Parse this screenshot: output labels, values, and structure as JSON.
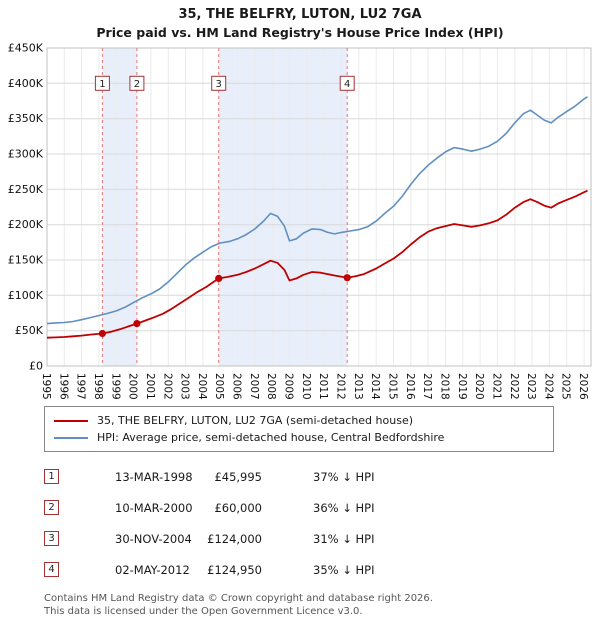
{
  "chart_data": {
    "type": "line",
    "title": "35, THE BELFRY, LUTON, LU2 7GA",
    "subtitle": "Price paid vs. HM Land Registry's House Price Index (HPI)",
    "xlabel": "",
    "ylabel": "",
    "grid": true,
    "x_range": [
      1995,
      2026.4
    ],
    "y_range": [
      0,
      450000
    ],
    "y_ticks": [
      0,
      50000,
      100000,
      150000,
      200000,
      250000,
      300000,
      350000,
      400000,
      450000
    ],
    "y_tick_labels": [
      "£0",
      "£50K",
      "£100K",
      "£150K",
      "£200K",
      "£250K",
      "£300K",
      "£350K",
      "£400K",
      "£450K"
    ],
    "x_ticks": [
      1995,
      1996,
      1997,
      1998,
      1999,
      2000,
      2001,
      2002,
      2003,
      2004,
      2005,
      2006,
      2007,
      2008,
      2009,
      2010,
      2011,
      2012,
      2013,
      2014,
      2015,
      2016,
      2017,
      2018,
      2019,
      2020,
      2021,
      2022,
      2023,
      2024,
      2025,
      2026
    ],
    "colors": {
      "property": "#c00000",
      "hpi": "#6090c0",
      "band": "#e9effa",
      "event_line": "#e07878",
      "grid_h": "#d9d9d9",
      "grid_v": "#ebebeb",
      "border": "#c0c0c0"
    },
    "legend": [
      {
        "label": "35, THE BELFRY, LUTON, LU2 7GA (semi-detached house)",
        "color": "#c00000",
        "thickness": 2.5
      },
      {
        "label": "HPI: Average price, semi-detached house, Central Bedfordshire",
        "color": "#6090c0",
        "thickness": 2
      }
    ],
    "bands": [
      [
        1998.2,
        2000.19
      ],
      [
        2004.91,
        2012.33
      ]
    ],
    "events": [
      {
        "label": "1",
        "x": 1998.2,
        "y": 45995
      },
      {
        "label": "2",
        "x": 2000.19,
        "y": 60000
      },
      {
        "label": "3",
        "x": 2004.91,
        "y": 124000
      },
      {
        "label": "4",
        "x": 2012.33,
        "y": 124950
      }
    ],
    "series": [
      {
        "name": "35, THE BELFRY, LUTON, LU2 7GA (semi-detached house)",
        "color_key": "property",
        "points": [
          [
            1995,
            40000
          ],
          [
            1995.5,
            40500
          ],
          [
            1996,
            41000
          ],
          [
            1996.5,
            42000
          ],
          [
            1997,
            43000
          ],
          [
            1997.5,
            44500
          ],
          [
            1998.2,
            45995
          ],
          [
            1998.7,
            48500
          ],
          [
            1999.2,
            52000
          ],
          [
            1999.7,
            56000
          ],
          [
            2000.19,
            60000
          ],
          [
            2000.7,
            64500
          ],
          [
            2001.2,
            69000
          ],
          [
            2001.7,
            74000
          ],
          [
            2002.2,
            81000
          ],
          [
            2002.7,
            89000
          ],
          [
            2003.2,
            97000
          ],
          [
            2003.7,
            105000
          ],
          [
            2004.2,
            112000
          ],
          [
            2004.91,
            124000
          ],
          [
            2005.4,
            126000
          ],
          [
            2006,
            129000
          ],
          [
            2006.5,
            133000
          ],
          [
            2007,
            138000
          ],
          [
            2007.5,
            144000
          ],
          [
            2007.9,
            149000
          ],
          [
            2008.3,
            146000
          ],
          [
            2008.7,
            136000
          ],
          [
            2009,
            121000
          ],
          [
            2009.4,
            124000
          ],
          [
            2009.8,
            129000
          ],
          [
            2010.3,
            133000
          ],
          [
            2010.8,
            132000
          ],
          [
            2011.2,
            130000
          ],
          [
            2011.6,
            128000
          ],
          [
            2012.33,
            124950
          ],
          [
            2012.8,
            127000
          ],
          [
            2013.3,
            130000
          ],
          [
            2014,
            138000
          ],
          [
            2014.5,
            145000
          ],
          [
            2015,
            152000
          ],
          [
            2015.5,
            161000
          ],
          [
            2016,
            172000
          ],
          [
            2016.5,
            182000
          ],
          [
            2017,
            190000
          ],
          [
            2017.5,
            195000
          ],
          [
            2018,
            198000
          ],
          [
            2018.5,
            201000
          ],
          [
            2019,
            199000
          ],
          [
            2019.5,
            197000
          ],
          [
            2020,
            199000
          ],
          [
            2020.5,
            202000
          ],
          [
            2021,
            206000
          ],
          [
            2021.5,
            214000
          ],
          [
            2022,
            224000
          ],
          [
            2022.5,
            232000
          ],
          [
            2022.9,
            236000
          ],
          [
            2023.3,
            232000
          ],
          [
            2023.7,
            227000
          ],
          [
            2024.1,
            224000
          ],
          [
            2024.5,
            230000
          ],
          [
            2025,
            235000
          ],
          [
            2025.5,
            240000
          ],
          [
            2026,
            246000
          ],
          [
            2026.2,
            248000
          ]
        ]
      },
      {
        "name": "HPI: Average price, semi-detached house, Central Bedfordshire",
        "color_key": "hpi",
        "points": [
          [
            1995,
            60000
          ],
          [
            1995.5,
            61000
          ],
          [
            1996,
            61500
          ],
          [
            1996.5,
            63000
          ],
          [
            1997,
            65500
          ],
          [
            1997.5,
            68500
          ],
          [
            1998,
            71500
          ],
          [
            1998.5,
            74500
          ],
          [
            1999,
            78000
          ],
          [
            1999.5,
            83000
          ],
          [
            2000,
            90000
          ],
          [
            2000.5,
            96500
          ],
          [
            2001,
            102000
          ],
          [
            2001.5,
            109000
          ],
          [
            2002,
            119000
          ],
          [
            2002.5,
            131000
          ],
          [
            2003,
            143000
          ],
          [
            2003.5,
            153000
          ],
          [
            2004,
            161000
          ],
          [
            2004.5,
            169000
          ],
          [
            2005,
            174000
          ],
          [
            2005.5,
            176000
          ],
          [
            2006,
            180000
          ],
          [
            2006.5,
            186000
          ],
          [
            2007,
            194000
          ],
          [
            2007.5,
            205000
          ],
          [
            2007.9,
            216000
          ],
          [
            2008.3,
            212000
          ],
          [
            2008.7,
            198000
          ],
          [
            2009,
            177000
          ],
          [
            2009.4,
            180000
          ],
          [
            2009.8,
            188000
          ],
          [
            2010.3,
            194000
          ],
          [
            2010.8,
            193000
          ],
          [
            2011.2,
            189000
          ],
          [
            2011.6,
            187000
          ],
          [
            2012,
            189000
          ],
          [
            2012.5,
            191000
          ],
          [
            2013,
            193000
          ],
          [
            2013.5,
            197000
          ],
          [
            2014,
            205000
          ],
          [
            2014.5,
            216000
          ],
          [
            2015,
            226000
          ],
          [
            2015.5,
            240000
          ],
          [
            2016,
            257000
          ],
          [
            2016.5,
            272000
          ],
          [
            2017,
            284000
          ],
          [
            2017.5,
            294000
          ],
          [
            2018,
            303000
          ],
          [
            2018.5,
            309000
          ],
          [
            2019,
            307000
          ],
          [
            2019.5,
            304000
          ],
          [
            2020,
            307000
          ],
          [
            2020.5,
            311000
          ],
          [
            2021,
            318000
          ],
          [
            2021.5,
            329000
          ],
          [
            2022,
            344000
          ],
          [
            2022.5,
            357000
          ],
          [
            2022.9,
            362000
          ],
          [
            2023.3,
            355000
          ],
          [
            2023.7,
            348000
          ],
          [
            2024.1,
            344000
          ],
          [
            2024.5,
            352000
          ],
          [
            2025,
            360000
          ],
          [
            2025.5,
            368000
          ],
          [
            2026,
            378000
          ],
          [
            2026.2,
            381000
          ]
        ]
      }
    ]
  },
  "transactions": [
    {
      "num": "1",
      "date": "13-MAR-1998",
      "price": "£45,995",
      "hpi": "37% ↓ HPI"
    },
    {
      "num": "2",
      "date": "10-MAR-2000",
      "price": "£60,000",
      "hpi": "36% ↓ HPI"
    },
    {
      "num": "3",
      "date": "30-NOV-2004",
      "price": "£124,000",
      "hpi": "31% ↓ HPI"
    },
    {
      "num": "4",
      "date": "02-MAY-2012",
      "price": "£124,950",
      "hpi": "35% ↓ HPI"
    }
  ],
  "footer": {
    "line1": "Contains HM Land Registry data © Crown copyright and database right 2026.",
    "line2": "This data is licensed under the Open Government Licence v3.0."
  }
}
